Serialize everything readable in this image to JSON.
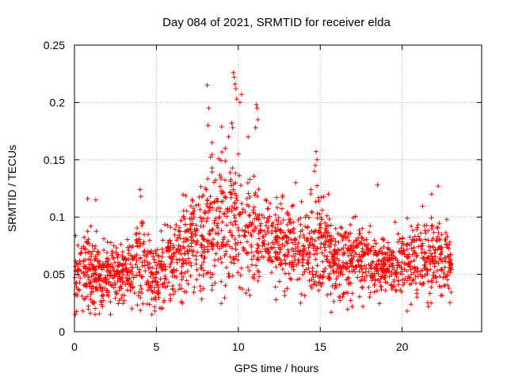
{
  "chart_data": {
    "type": "scatter",
    "title": "Day 084 of 2021, SRMTID for receiver elda",
    "xlabel": "GPS time / hours",
    "ylabel": "SRMTID / TECUs",
    "xlim": [
      0,
      24.85
    ],
    "ylim": [
      0,
      0.25
    ],
    "grid": true,
    "marker": "+",
    "color": "#ff0000",
    "xticks": [
      0,
      5,
      10,
      15,
      20
    ],
    "xtick_labels": [
      "0",
      "5",
      "10",
      "15",
      "20"
    ],
    "yticks": [
      0,
      0.05,
      0.1,
      0.15,
      0.2,
      0.25
    ],
    "ytick_labels": [
      "0",
      "0.05",
      "0.1",
      "0.15",
      "0.2",
      "0.25"
    ],
    "series": [
      {
        "name": "elda",
        "x_range": [
          0,
          23
        ],
        "points_per_hour": 90,
        "envelope": {
          "hours": [
            0,
            1,
            2,
            3,
            4,
            5,
            6,
            7,
            8,
            9,
            10,
            11,
            12,
            13,
            14,
            15,
            16,
            17,
            18,
            19,
            20,
            21,
            22,
            23
          ],
          "median": [
            0.05,
            0.055,
            0.05,
            0.05,
            0.06,
            0.05,
            0.065,
            0.075,
            0.085,
            0.1,
            0.09,
            0.085,
            0.08,
            0.075,
            0.075,
            0.075,
            0.06,
            0.065,
            0.06,
            0.055,
            0.06,
            0.065,
            0.065,
            0.06
          ],
          "spread": [
            0.02,
            0.025,
            0.018,
            0.018,
            0.03,
            0.02,
            0.025,
            0.025,
            0.035,
            0.045,
            0.035,
            0.03,
            0.025,
            0.025,
            0.025,
            0.035,
            0.02,
            0.025,
            0.02,
            0.018,
            0.02,
            0.025,
            0.025,
            0.02
          ]
        },
        "highlights": [
          {
            "x": 8.1,
            "y": 0.215
          },
          {
            "x": 8.2,
            "y": 0.195
          },
          {
            "x": 8.15,
            "y": 0.18
          },
          {
            "x": 8.4,
            "y": 0.165
          },
          {
            "x": 9.7,
            "y": 0.226
          },
          {
            "x": 9.75,
            "y": 0.222
          },
          {
            "x": 9.8,
            "y": 0.216
          },
          {
            "x": 9.85,
            "y": 0.212
          },
          {
            "x": 9.9,
            "y": 0.203
          },
          {
            "x": 10.2,
            "y": 0.207
          },
          {
            "x": 10.1,
            "y": 0.2
          },
          {
            "x": 9.6,
            "y": 0.182
          },
          {
            "x": 9.65,
            "y": 0.178
          },
          {
            "x": 11.1,
            "y": 0.198
          },
          {
            "x": 11.15,
            "y": 0.195
          },
          {
            "x": 11.2,
            "y": 0.185
          },
          {
            "x": 11.05,
            "y": 0.178
          },
          {
            "x": 9.4,
            "y": 0.17
          },
          {
            "x": 9.2,
            "y": 0.16
          },
          {
            "x": 10.6,
            "y": 0.17
          },
          {
            "x": 10.0,
            "y": 0.155
          },
          {
            "x": 14.75,
            "y": 0.157
          },
          {
            "x": 14.8,
            "y": 0.15
          },
          {
            "x": 14.7,
            "y": 0.145
          },
          {
            "x": 14.65,
            "y": 0.14
          },
          {
            "x": 4.0,
            "y": 0.124
          },
          {
            "x": 4.05,
            "y": 0.118
          },
          {
            "x": 22.2,
            "y": 0.127
          },
          {
            "x": 21.8,
            "y": 0.12
          },
          {
            "x": 18.5,
            "y": 0.128
          },
          {
            "x": 0.8,
            "y": 0.116
          },
          {
            "x": 1.3,
            "y": 0.115
          },
          {
            "x": 1.0,
            "y": 0.092
          },
          {
            "x": 13.5,
            "y": 0.13
          },
          {
            "x": 15.5,
            "y": 0.12
          },
          {
            "x": 0.05,
            "y": 0.015
          },
          {
            "x": 0.5,
            "y": 0.018
          },
          {
            "x": 2.2,
            "y": 0.015
          },
          {
            "x": 3.5,
            "y": 0.02
          },
          {
            "x": 4.9,
            "y": 0.018
          },
          {
            "x": 6.6,
            "y": 0.025
          },
          {
            "x": 20.3,
            "y": 0.018
          },
          {
            "x": 21.6,
            "y": 0.022
          },
          {
            "x": 17.6,
            "y": 0.022
          },
          {
            "x": 12.3,
            "y": 0.028
          },
          {
            "x": 13.8,
            "y": 0.025
          }
        ]
      }
    ]
  }
}
